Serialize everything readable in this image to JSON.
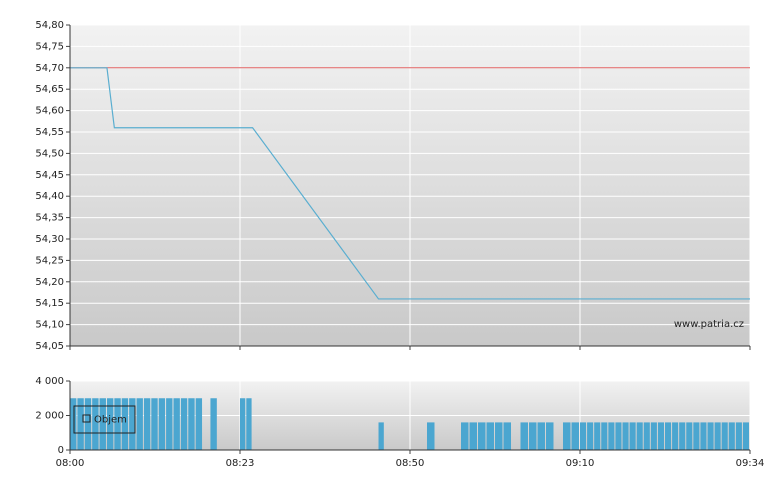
{
  "chart_data": [
    {
      "type": "line",
      "x": [
        "08:00",
        "08:05",
        "08:06",
        "08:25",
        "08:45",
        "09:34"
      ],
      "values": [
        54.7,
        54.7,
        54.56,
        54.56,
        54.16,
        54.16
      ],
      "color": "#5aaed0",
      "reference_line": {
        "value": 54.7,
        "color": "#e06060"
      },
      "ylim": [
        54.05,
        54.8
      ],
      "yticks": [
        {
          "value": 54.05,
          "label": "54,05"
        },
        {
          "value": 54.1,
          "label": "54,10"
        },
        {
          "value": 54.15,
          "label": "54,15"
        },
        {
          "value": 54.2,
          "label": "54,20"
        },
        {
          "value": 54.25,
          "label": "54,25"
        },
        {
          "value": 54.3,
          "label": "54,30"
        },
        {
          "value": 54.35,
          "label": "54,35"
        },
        {
          "value": 54.4,
          "label": "54,40"
        },
        {
          "value": 54.45,
          "label": "54,45"
        },
        {
          "value": 54.5,
          "label": "54,50"
        },
        {
          "value": 54.55,
          "label": "54,55"
        },
        {
          "value": 54.6,
          "label": "54,60"
        },
        {
          "value": 54.65,
          "label": "54,65"
        },
        {
          "value": 54.7,
          "label": "54,70"
        },
        {
          "value": 54.75,
          "label": "54,75"
        },
        {
          "value": 54.8,
          "label": "54,80"
        }
      ],
      "grid": true,
      "watermark": "www.patria.cz"
    },
    {
      "type": "bar",
      "series": [
        {
          "name": "Objem",
          "color": "#4ba6d0",
          "x": [
            "08:00",
            "08:01",
            "08:02",
            "08:03",
            "08:04",
            "08:05",
            "08:06",
            "08:07",
            "08:08",
            "08:09",
            "08:10",
            "08:11",
            "08:12",
            "08:13",
            "08:14",
            "08:15",
            "08:16",
            "08:17",
            "08:19",
            "08:23",
            "08:24",
            "08:45",
            "08:52",
            "08:56",
            "08:57",
            "08:58",
            "08:59",
            "09:00",
            "09:01",
            "09:03",
            "09:04",
            "09:05",
            "09:06",
            "09:08",
            "09:09",
            "09:10",
            "09:11",
            "09:12",
            "09:13",
            "09:14",
            "09:15",
            "09:16",
            "09:17",
            "09:18",
            "09:19",
            "09:20",
            "09:21",
            "09:22",
            "09:23",
            "09:24",
            "09:25",
            "09:26",
            "09:27",
            "09:28",
            "09:29",
            "09:30",
            "09:31",
            "09:32",
            "09:33"
          ],
          "values": [
            3000,
            3000,
            3000,
            3000,
            3000,
            3000,
            3000,
            3000,
            3000,
            3000,
            3000,
            3000,
            3000,
            3000,
            3000,
            3000,
            3000,
            3000,
            3000,
            3000,
            3000,
            1600,
            1600,
            1600,
            1600,
            1600,
            1600,
            1600,
            1600,
            1600,
            1600,
            1600,
            1600,
            1600,
            1600,
            1600,
            1600,
            1600,
            1600,
            1600,
            1600,
            1600,
            1600,
            1600,
            1600,
            1600,
            1600,
            1600,
            1600,
            1600,
            1600,
            1600,
            1600,
            1600,
            1600,
            1600,
            1600,
            1600,
            1600
          ]
        }
      ],
      "ylim": [
        0,
        4000
      ],
      "yticks": [
        0,
        {
          "value": 2000,
          "label": "2 000"
        },
        {
          "value": 4000,
          "label": "4 000"
        }
      ],
      "xticks": [
        "08:00",
        "08:23",
        "08:50",
        "09:10",
        "09:34"
      ],
      "grid": true,
      "legend": "top-left"
    }
  ]
}
